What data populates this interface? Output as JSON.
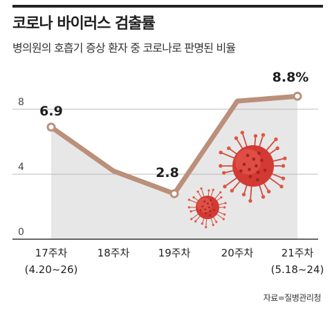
{
  "title": "코로나 바이러스 검출률",
  "subtitle": "병의원의 호흡기 증상 환자 중 코로나로 판명된 비율",
  "source": "자료=질병관리청",
  "colors": {
    "line": "#bb8f7a",
    "area": "#e7e7e7",
    "gridline": "#b8b8b8",
    "text": "#222222",
    "virus": "#d33a33"
  },
  "chart_data": {
    "type": "area",
    "categories": [
      "17주차",
      "18주차",
      "19주차",
      "20주차",
      "21주차"
    ],
    "category_sublabels": [
      "(4.20~26)",
      "",
      "",
      "",
      "(5.18~24)"
    ],
    "values": [
      6.9,
      4.2,
      2.8,
      8.5,
      8.8
    ],
    "value_labels": [
      "6.9",
      "",
      "2.8",
      "",
      "8.8%"
    ],
    "y_ticks": [
      "0",
      "4",
      "8"
    ],
    "ylim": [
      0,
      10
    ],
    "grid": true,
    "markers": "circle"
  }
}
